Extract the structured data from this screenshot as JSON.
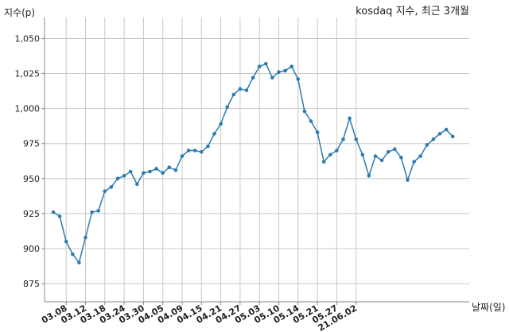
{
  "chart_data": {
    "type": "line",
    "title": "kosdaq 지수, 최근 3개월",
    "xlabel": "날짜(일)",
    "ylabel": "지수(p)",
    "ylim": [
      862,
      1065
    ],
    "yticks": [
      "875",
      "900",
      "925",
      "950",
      "975",
      "1,000",
      "1,025",
      "1,050"
    ],
    "ytick_values": [
      875,
      900,
      925,
      950,
      975,
      1000,
      1025,
      1050
    ],
    "xticks": [
      "03.08",
      "03.12",
      "03.18",
      "03.24",
      "03.30",
      "04.05",
      "04.09",
      "04.15",
      "04.21",
      "04.27",
      "05.03",
      "05.10",
      "05.14",
      "05.21",
      "05.27",
      "21.06.02"
    ],
    "xtick_index": [
      2,
      5,
      8,
      11,
      14,
      17,
      20,
      23,
      26,
      29,
      32,
      35,
      38,
      41,
      44,
      47
    ],
    "grid": true,
    "series": [
      {
        "color": "#2e7bb0",
        "values": [
          926,
          923,
          905,
          896,
          890,
          908,
          926,
          927,
          941,
          944,
          950,
          952,
          955,
          946,
          954,
          955,
          957,
          954,
          958,
          956,
          966,
          970,
          970,
          969,
          973,
          982,
          989,
          1001,
          1010,
          1014,
          1013,
          1022,
          1030,
          1032,
          1022,
          1026,
          1027,
          1030,
          1021,
          998,
          991,
          983,
          962,
          967,
          970,
          978,
          993,
          978,
          967,
          952,
          966,
          963,
          969,
          971,
          965,
          949,
          962,
          966,
          974,
          978,
          982,
          985,
          980
        ]
      }
    ]
  }
}
